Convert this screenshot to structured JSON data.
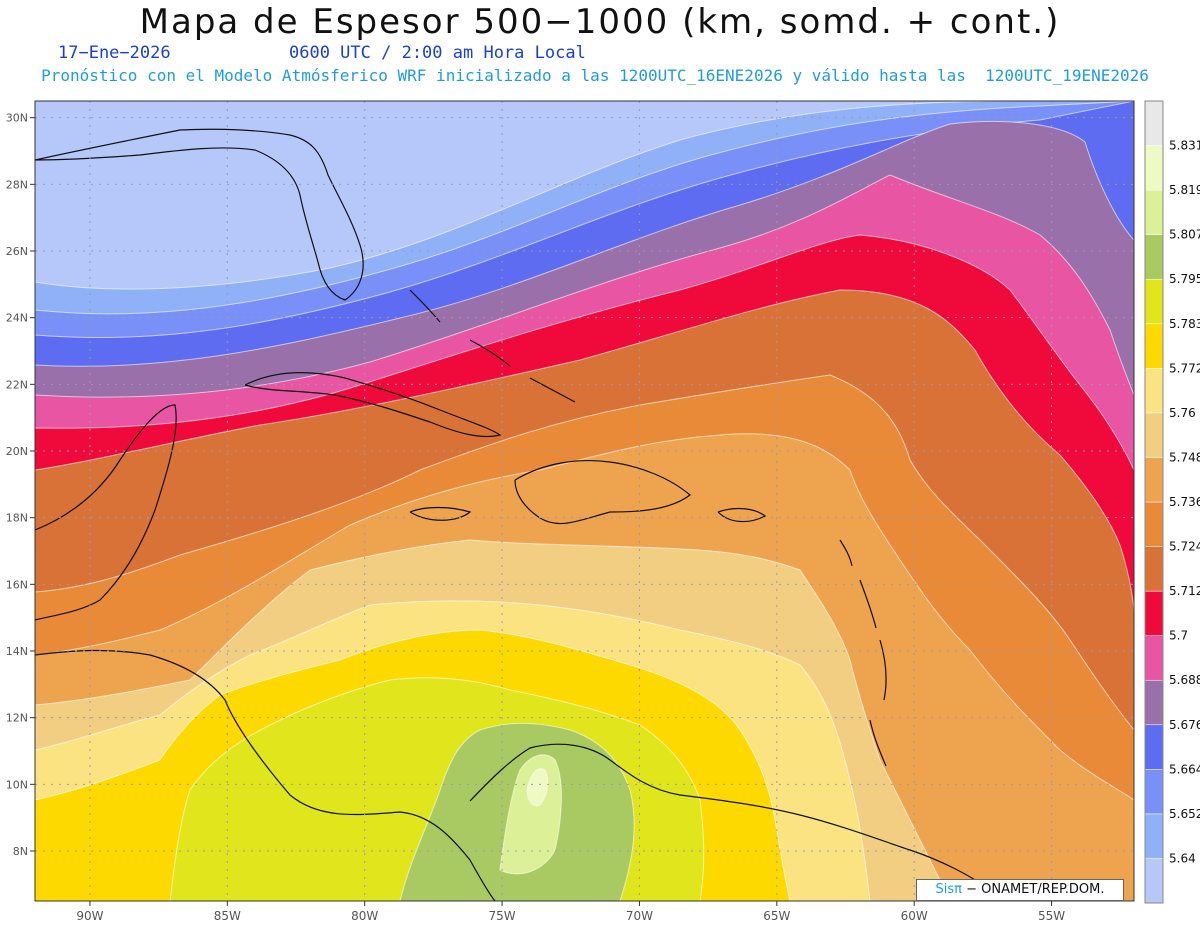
{
  "title": "Mapa de Espesor 500−1000 (km, somd. + cont.)",
  "date": "17−Ene−2026",
  "time": "0600 UTC / 2:00 am Hora Local",
  "forecast_line": "Pronóstico con el Modelo Atmósferico WRF inicializado a las 1200UTC_16ENE2026 y válido hasta las  1200UTC_19ENE2026",
  "credit": {
    "brand": "Sisπ",
    "text": " − ONAMET/REP.DOM."
  },
  "map": {
    "lon_range": [
      -92,
      -52
    ],
    "lat_range": [
      6.5,
      30.5
    ],
    "lon_ticks": [
      "90W",
      "85W",
      "80W",
      "75W",
      "70W",
      "65W",
      "60W",
      "55W"
    ],
    "lat_ticks": [
      "30N",
      "28N",
      "26N",
      "24N",
      "22N",
      "20N",
      "18N",
      "16N",
      "14N",
      "12N",
      "10N",
      "8N"
    ]
  },
  "legend": {
    "unit": "km",
    "levels": [
      "5.64",
      "5.652",
      "5.664",
      "5.676",
      "5.688",
      "5.7",
      "5.712",
      "5.724",
      "5.736",
      "5.748",
      "5.76",
      "5.772",
      "5.783",
      "5.795",
      "5.807",
      "5.819",
      "5.831"
    ],
    "colors": [
      "#b6c8fa",
      "#90b0f8",
      "#7890f8",
      "#5e6cf2",
      "#9a70aa",
      "#e855a2",
      "#f00a3c",
      "#d97236",
      "#e88a38",
      "#eea44e",
      "#f2ce82",
      "#fbe382",
      "#fdd900",
      "#e1e51c",
      "#a9ca62",
      "#dcf098",
      "#eef9c4",
      "#e8e8e8"
    ]
  }
}
